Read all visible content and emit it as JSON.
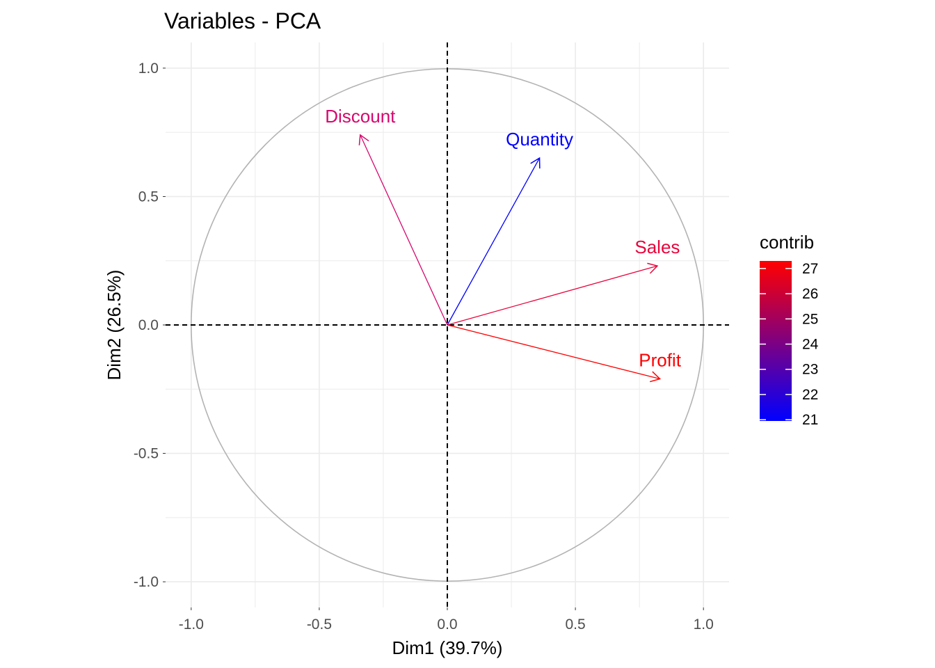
{
  "chart_data": {
    "type": "scatter",
    "subtype": "pca-variable-correlation-circle",
    "title": "Variables - PCA",
    "xlabel": "Dim1 (39.7%)",
    "ylabel": "Dim2 (26.5%)",
    "xlim": [
      -1.1,
      1.1
    ],
    "ylim": [
      -1.1,
      1.1
    ],
    "x_ticks": [
      -1.0,
      -0.5,
      0.0,
      0.5,
      1.0
    ],
    "y_ticks": [
      -1.0,
      -0.5,
      0.0,
      0.5,
      1.0
    ],
    "x_tick_labels": [
      "-1.0",
      "-0.5",
      "0.0",
      "0.5",
      "1.0"
    ],
    "y_tick_labels": [
      "-1.0",
      "-0.5",
      "0.0",
      "0.5",
      "1.0"
    ],
    "grid": true,
    "unit_circle": true,
    "reference_lines": "dashed lines at x = 0 and y = 0",
    "variables": [
      {
        "name": "Discount",
        "x": -0.34,
        "y": 0.74,
        "contrib": 24.4,
        "color": "#d6086e"
      },
      {
        "name": "Quantity",
        "x": 0.36,
        "y": 0.65,
        "contrib": 21.0,
        "color": "#0000ff"
      },
      {
        "name": "Sales",
        "x": 0.82,
        "y": 0.23,
        "contrib": 26.4,
        "color": "#e8053c"
      },
      {
        "name": "Profit",
        "x": 0.83,
        "y": -0.21,
        "contrib": 27.3,
        "color": "#ff0000"
      }
    ],
    "legend": {
      "title": "contrib",
      "placement": "right",
      "min": 20.95,
      "max": 27.3,
      "color_low": "#0000ff",
      "color_high": "#ff0000",
      "ticks": [
        27,
        26,
        25,
        24,
        23,
        22,
        21
      ],
      "tick_labels": [
        "27",
        "26",
        "25",
        "24",
        "23",
        "22",
        "21"
      ]
    },
    "colors": {
      "grid": "#ebebeb",
      "circle": "#b3b3b3",
      "reference_line": "#000000",
      "tick_text": "#4d4d4d"
    }
  }
}
